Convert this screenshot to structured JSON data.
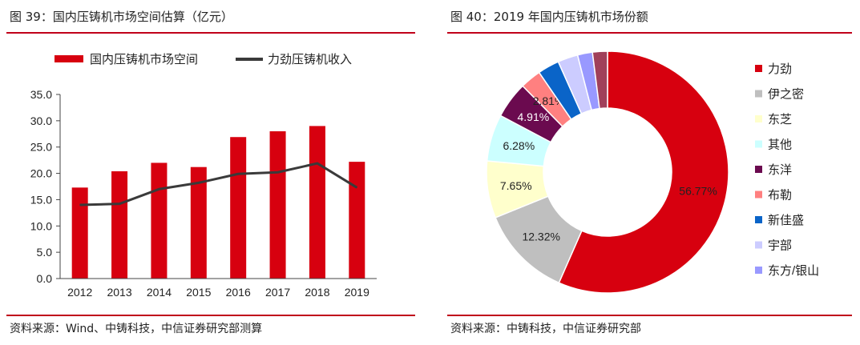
{
  "left": {
    "title": "图 39：国内压铸机市场空间估算（亿元）",
    "source": "资料来源：Wind、中铸科技，中信证券研究部测算"
  },
  "right": {
    "title": "图 40：2019 年国内压铸机市场份额",
    "source": "资料来源：中铸科技，中信证券研究部"
  },
  "colors": {
    "accent": "#c0001a",
    "bar": "#d7000f",
    "line": "#3a3a3a"
  },
  "chart_data": [
    {
      "type": "bar",
      "title": "图 39：国内压铸机市场空间估算（亿元）",
      "categories": [
        "2012",
        "2013",
        "2014",
        "2015",
        "2016",
        "2017",
        "2018",
        "2019"
      ],
      "yticks": [
        "0.0",
        "5.0",
        "10.0",
        "15.0",
        "20.0",
        "25.0",
        "30.0",
        "35.0"
      ],
      "ylim": [
        0,
        35
      ],
      "legend_position": "top",
      "series": [
        {
          "name": "国内压铸机市场空间",
          "kind": "bar",
          "color": "#d7000f",
          "values": [
            17.3,
            20.4,
            22.0,
            21.2,
            26.9,
            28.0,
            29.0,
            22.2
          ]
        },
        {
          "name": "力劲压铸机收入",
          "kind": "line",
          "color": "#3a3a3a",
          "values": [
            14.0,
            14.2,
            17.0,
            18.2,
            19.9,
            20.2,
            21.9,
            17.3
          ]
        }
      ]
    },
    {
      "type": "pie",
      "title": "图 40：2019 年国内压铸机市场份额",
      "legend_position": "right",
      "slices": [
        {
          "label": "力劲",
          "value": 56.77,
          "display": "56.77%",
          "color": "#d7000f"
        },
        {
          "label": "伊之密",
          "value": 12.32,
          "display": "12.32%",
          "color": "#bfbfbf"
        },
        {
          "label": "东芝",
          "value": 7.65,
          "display": "7.65%",
          "color": "#ffffcc"
        },
        {
          "label": "其他",
          "value": 6.28,
          "display": "6.28%",
          "color": "#ccffff"
        },
        {
          "label": "东洋",
          "value": 4.91,
          "display": "4.91%",
          "color": "#6b0a4f"
        },
        {
          "label": "布勒",
          "value": 2.81,
          "display": "2.81%",
          "color": "#ff8080"
        },
        {
          "label": "新佳盛",
          "value": 2.9,
          "display": "",
          "color": "#0a64c8"
        },
        {
          "label": "宇部",
          "value": 2.7,
          "display": "",
          "color": "#ccccff"
        },
        {
          "label": "东方/银山",
          "value": 2.0,
          "display": "",
          "color": "#9999ff"
        },
        {
          "label": "",
          "value": 2.0,
          "display": "",
          "color": "#a0405a"
        }
      ]
    }
  ]
}
